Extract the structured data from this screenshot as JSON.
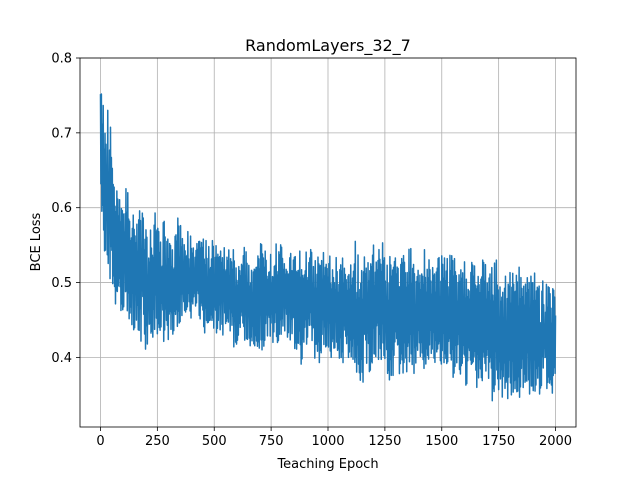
{
  "chart_data": {
    "type": "line",
    "title": "RandomLayers_32_7",
    "xlabel": "Teaching Epoch",
    "ylabel": "BCE Loss",
    "xlim": [
      -90,
      2090
    ],
    "ylim": [
      0.307,
      0.8
    ],
    "xticks": [
      0,
      250,
      500,
      750,
      1000,
      1250,
      1500,
      1750,
      2000
    ],
    "yticks": [
      0.4,
      0.5,
      0.6,
      0.7,
      0.8
    ],
    "grid": true,
    "series_color": "#1f77b4",
    "series": [
      {
        "name": "",
        "x_start": 0,
        "x_step": 20,
        "lower": [
          0.6,
          0.52,
          0.5,
          0.47,
          0.46,
          0.46,
          0.45,
          0.44,
          0.43,
          0.42,
          0.41,
          0.42,
          0.43,
          0.43,
          0.42,
          0.42,
          0.42,
          0.43,
          0.45,
          0.44,
          0.45,
          0.46,
          0.44,
          0.43,
          0.43,
          0.42,
          0.43,
          0.43,
          0.43,
          0.42,
          0.4,
          0.43,
          0.42,
          0.41,
          0.4,
          0.41,
          0.41,
          0.42,
          0.42,
          0.41,
          0.41,
          0.42,
          0.41,
          0.4,
          0.39,
          0.4,
          0.42,
          0.4,
          0.39,
          0.41,
          0.4,
          0.4,
          0.4,
          0.39,
          0.4,
          0.4,
          0.36,
          0.35,
          0.37,
          0.38,
          0.39,
          0.38,
          0.38,
          0.37,
          0.37,
          0.38,
          0.37,
          0.38,
          0.38,
          0.37,
          0.39,
          0.38,
          0.38,
          0.38,
          0.37,
          0.39,
          0.38,
          0.37,
          0.37,
          0.36,
          0.36,
          0.37,
          0.36,
          0.36,
          0.37,
          0.36,
          0.34,
          0.36,
          0.35,
          0.34,
          0.35,
          0.35,
          0.34,
          0.35,
          0.35,
          0.35,
          0.36,
          0.34,
          0.35,
          0.34,
          0.36
        ],
        "upper": [
          0.78,
          0.73,
          0.73,
          0.65,
          0.62,
          0.64,
          0.62,
          0.6,
          0.59,
          0.61,
          0.58,
          0.57,
          0.6,
          0.56,
          0.59,
          0.55,
          0.56,
          0.6,
          0.56,
          0.57,
          0.56,
          0.55,
          0.56,
          0.56,
          0.55,
          0.56,
          0.55,
          0.56,
          0.56,
          0.55,
          0.54,
          0.55,
          0.55,
          0.53,
          0.54,
          0.56,
          0.54,
          0.55,
          0.54,
          0.56,
          0.55,
          0.54,
          0.55,
          0.54,
          0.55,
          0.54,
          0.55,
          0.55,
          0.53,
          0.54,
          0.53,
          0.55,
          0.53,
          0.54,
          0.53,
          0.54,
          0.56,
          0.53,
          0.54,
          0.53,
          0.55,
          0.54,
          0.56,
          0.53,
          0.54,
          0.55,
          0.53,
          0.54,
          0.55,
          0.53,
          0.53,
          0.55,
          0.56,
          0.52,
          0.53,
          0.54,
          0.53,
          0.54,
          0.53,
          0.52,
          0.53,
          0.53,
          0.54,
          0.52,
          0.53,
          0.52,
          0.52,
          0.53,
          0.52,
          0.51,
          0.52,
          0.51,
          0.53,
          0.52,
          0.51,
          0.52,
          0.51,
          0.5,
          0.51,
          0.5,
          0.5
        ]
      }
    ]
  }
}
